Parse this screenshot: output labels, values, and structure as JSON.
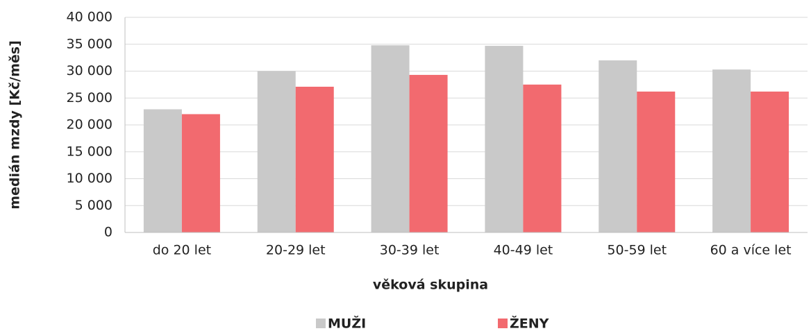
{
  "chart_data": {
    "type": "bar",
    "x_label": "věková skupina",
    "y_label": "medián  mzdy  [Kč/měs]",
    "categories": [
      "do 20 let",
      "20-29 let",
      "30-39 let",
      "40-49 let",
      "50-59 let",
      "60 a více let"
    ],
    "series": [
      {
        "name": "MUŽI",
        "color": "#c9c9c9",
        "values": [
          22900,
          30000,
          34800,
          34700,
          32000,
          30300
        ]
      },
      {
        "name": "ŽENY",
        "color": "#f26a6f",
        "values": [
          22000,
          27100,
          29300,
          27500,
          26200,
          26200
        ]
      }
    ],
    "ylim": [
      0,
      40000
    ],
    "yticks": [
      0,
      {
        "value": 5000,
        "label": "5 000"
      },
      {
        "value": 10000,
        "label": "10 000"
      },
      {
        "value": 15000,
        "label": "15 000"
      },
      {
        "value": 20000,
        "label": "20 000"
      },
      {
        "value": 25000,
        "label": "25 000"
      },
      {
        "value": 30000,
        "label": "30 000"
      },
      {
        "value": 35000,
        "label": "35 000"
      },
      {
        "value": 40000,
        "label": "40 000"
      }
    ],
    "grid": true,
    "legend": "bottom"
  }
}
